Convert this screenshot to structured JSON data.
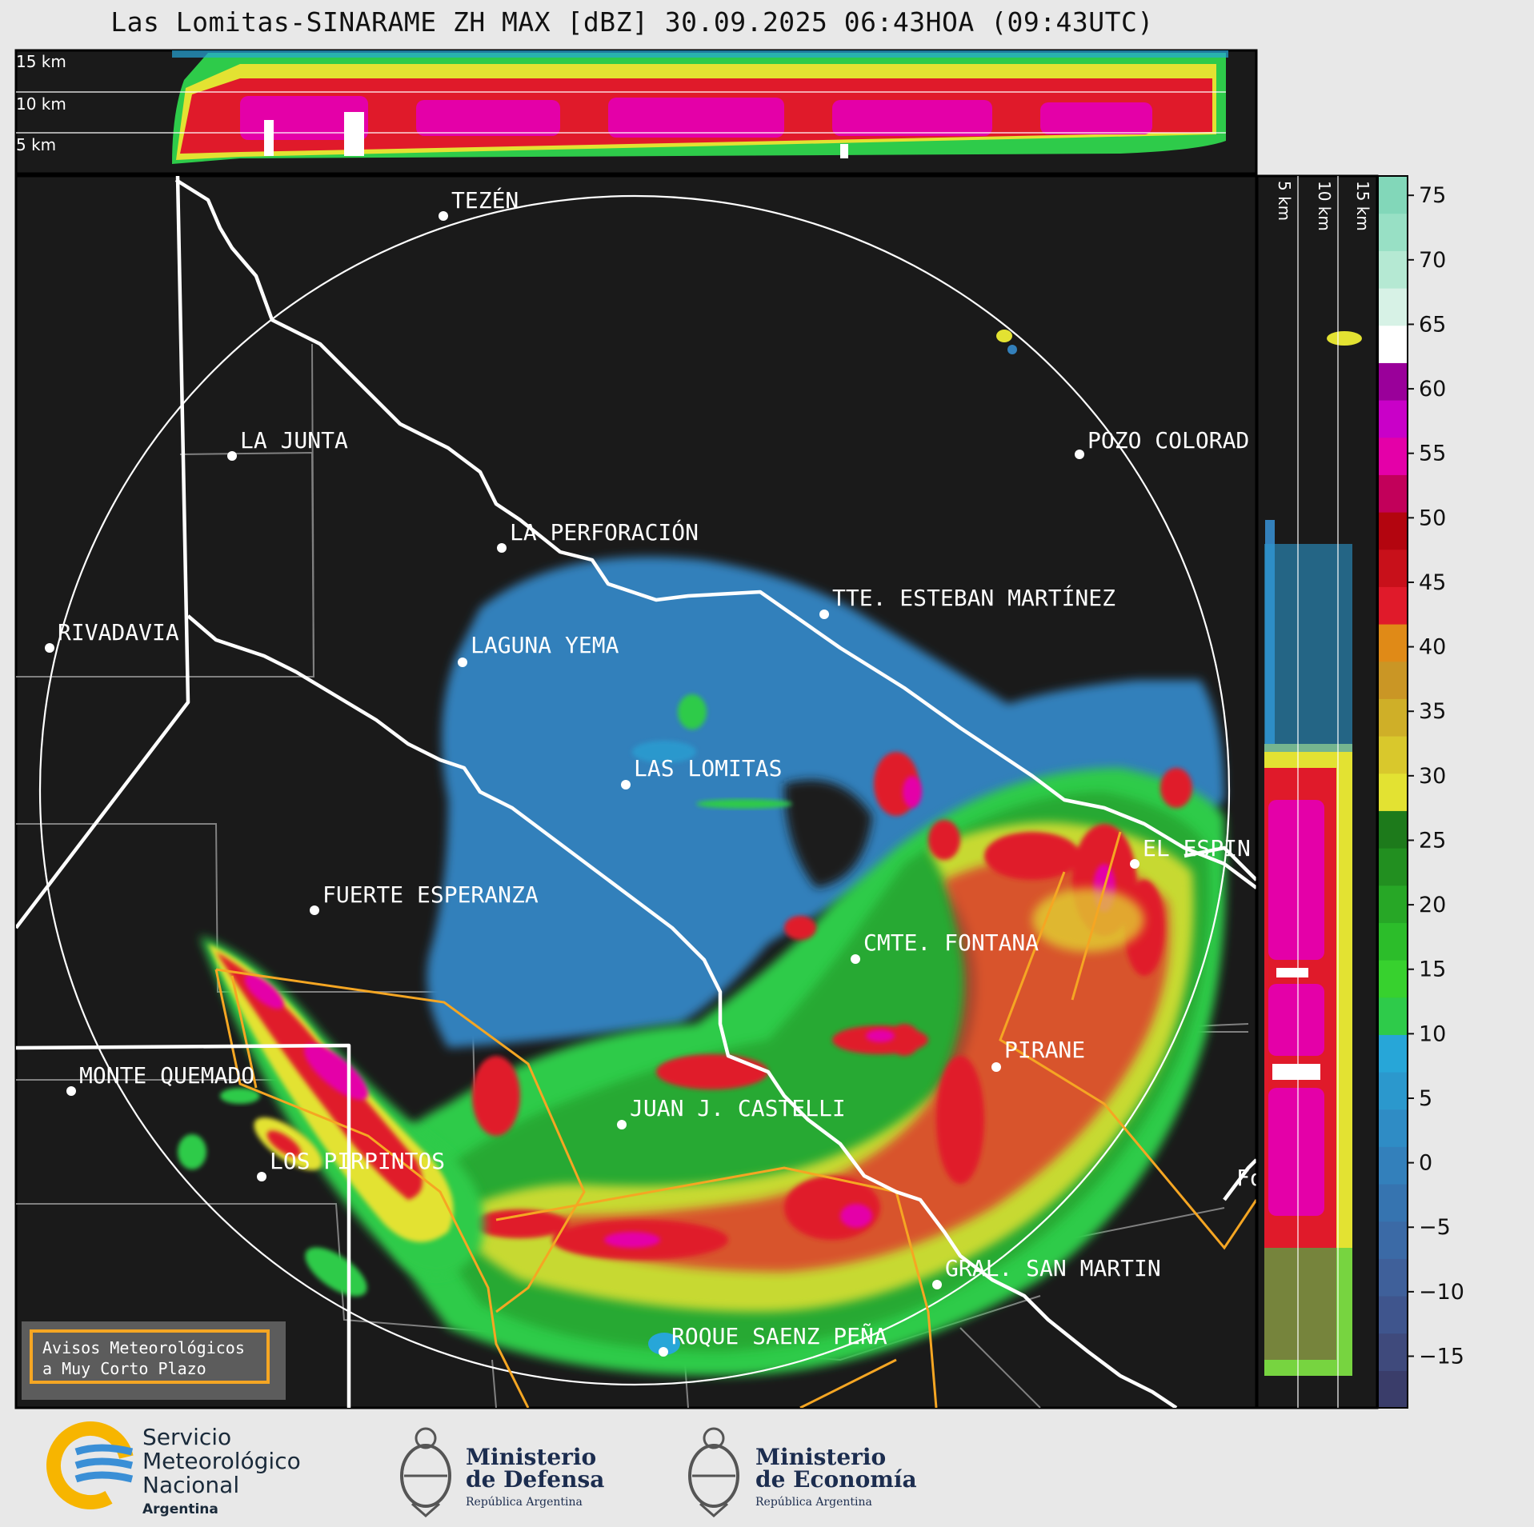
{
  "title": "Las Lomitas-SINARAME ZH MAX [dBZ] 30.09.2025 06:43HOA (09:43UTC)",
  "top_panel": {
    "labels": [
      "15 km",
      "10 km",
      "5 km"
    ]
  },
  "side_panel": {
    "labels": [
      "5 km",
      "10 km",
      "15 km"
    ]
  },
  "colorbar": {
    "unit": "dBZ",
    "ticks": [
      "75",
      "70",
      "65",
      "60",
      "55",
      "50",
      "45",
      "40",
      "35",
      "30",
      "25",
      "20",
      "15",
      "10",
      "5",
      "0",
      "−5",
      "−10",
      "−15"
    ],
    "colors": [
      "#3a3d6a",
      "#3f4a7c",
      "#3f558d",
      "#3f609a",
      "#3b6aa6",
      "#3674b0",
      "#3380bb",
      "#2f8cc5",
      "#2b98cd",
      "#27a6d8",
      "#2ecb4a",
      "#37d12e",
      "#2cbd2a",
      "#27a726",
      "#228f20",
      "#1d7a1b",
      "#e3e232",
      "#d9c82c",
      "#cfaf28",
      "#ca9625",
      "#e08a17",
      "#e01a2a",
      "#c8101a",
      "#b3050f",
      "#c2005a",
      "#e400a8",
      "#c900c8",
      "#9a009a",
      "#ffffff",
      "#d7f2e6",
      "#b5e9d3",
      "#98e0c5",
      "#82d7b9"
    ],
    "cmin": -19,
    "cmax": 76.5
  },
  "places": [
    {
      "name": "TEZÉN"
    },
    {
      "name": "LA JUNTA"
    },
    {
      "name": "POZO COLORAD"
    },
    {
      "name": "LA PERFORACIÓN"
    },
    {
      "name": "RIVADAVIA"
    },
    {
      "name": "TTE. ESTEBAN MARTÍNEZ"
    },
    {
      "name": "LAGUNA YEMA"
    },
    {
      "name": "LAS LOMITAS"
    },
    {
      "name": "EL ESPIN"
    },
    {
      "name": "FUERTE ESPERANZA"
    },
    {
      "name": "CMTE. FONTANA"
    },
    {
      "name": "PIRANE"
    },
    {
      "name": "MONTE QUEMADO"
    },
    {
      "name": "JUAN J. CASTELLI"
    },
    {
      "name": "LOS PIRPINTOS"
    },
    {
      "name": "GRAL. SAN MARTIN"
    },
    {
      "name": "ROQUE SAENZ PEÑA"
    },
    {
      "name": "Fo"
    }
  ],
  "warning_box": {
    "line1": "Avisos Meteorológicos",
    "line2": "a Muy Corto Plazo"
  },
  "logos": {
    "smn": {
      "line1": "Servicio",
      "line2": "Meteorológico",
      "line3": "Nacional",
      "line4": "Argentina"
    },
    "defensa": {
      "line1": "Ministerio",
      "line2": "de Defensa",
      "line3": "República Argentina"
    },
    "economia": {
      "line1": "Ministerio",
      "line2": "de Economía",
      "line3": "República Argentina"
    }
  },
  "colors": {
    "background": "#1a1a1a",
    "page": "#e8e8e8",
    "range_ring": "#ffffff",
    "province_border": "#ffffff",
    "department_border": "#808080",
    "warning_polygon": "#f5a623"
  }
}
